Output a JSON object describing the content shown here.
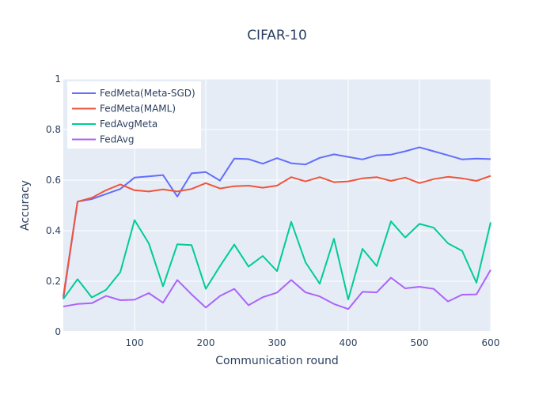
{
  "chart_data": {
    "type": "line",
    "title": "CIFAR-10",
    "xlabel": "Communication round",
    "ylabel": "Accuracy",
    "xlim": [
      0,
      600
    ],
    "ylim": [
      0,
      1
    ],
    "xticks": [
      100,
      200,
      300,
      400,
      500,
      600
    ],
    "yticks": [
      0,
      0.2,
      0.4,
      0.6,
      0.8,
      1
    ],
    "ytick_labels": [
      "0",
      "0.2",
      "0.4",
      "0.6",
      "0.8",
      "1"
    ],
    "grid": true,
    "legend_position": "top-left",
    "x": [
      0,
      20,
      40,
      60,
      80,
      100,
      120,
      140,
      160,
      180,
      200,
      220,
      240,
      260,
      280,
      300,
      320,
      340,
      360,
      380,
      400,
      420,
      440,
      460,
      480,
      500,
      520,
      540,
      560,
      580,
      600
    ],
    "series": [
      {
        "name": "FedMeta(Meta-SGD)",
        "color": "#636efa",
        "values": [
          0.13,
          0.515,
          0.525,
          0.545,
          0.565,
          0.61,
          0.615,
          0.62,
          0.535,
          0.627,
          0.632,
          0.598,
          0.685,
          0.683,
          0.665,
          0.687,
          0.667,
          0.662,
          0.688,
          0.702,
          0.692,
          0.682,
          0.698,
          0.701,
          0.714,
          0.73,
          0.714,
          0.698,
          0.682,
          0.685,
          0.683
        ]
      },
      {
        "name": "FedMeta(MAML)",
        "color": "#ef553b",
        "values": [
          0.14,
          0.515,
          0.53,
          0.56,
          0.583,
          0.56,
          0.555,
          0.563,
          0.555,
          0.565,
          0.588,
          0.567,
          0.576,
          0.578,
          0.57,
          0.578,
          0.612,
          0.595,
          0.612,
          0.592,
          0.595,
          0.607,
          0.612,
          0.597,
          0.61,
          0.588,
          0.604,
          0.613,
          0.607,
          0.597,
          0.617
        ]
      },
      {
        "name": "FedAvgMeta",
        "color": "#00cc96",
        "values": [
          0.13,
          0.208,
          0.136,
          0.166,
          0.236,
          0.442,
          0.35,
          0.18,
          0.346,
          0.343,
          0.17,
          0.26,
          0.345,
          0.258,
          0.3,
          0.24,
          0.435,
          0.275,
          0.19,
          0.368,
          0.128,
          0.328,
          0.26,
          0.437,
          0.373,
          0.427,
          0.412,
          0.35,
          0.32,
          0.194,
          0.433
        ]
      },
      {
        "name": "FedAvg",
        "color": "#ab63fa",
        "values": [
          0.1,
          0.11,
          0.113,
          0.142,
          0.125,
          0.127,
          0.153,
          0.115,
          0.205,
          0.148,
          0.096,
          0.142,
          0.17,
          0.105,
          0.137,
          0.155,
          0.205,
          0.156,
          0.14,
          0.11,
          0.09,
          0.158,
          0.156,
          0.214,
          0.172,
          0.178,
          0.17,
          0.12,
          0.147,
          0.148,
          0.245
        ]
      }
    ]
  }
}
